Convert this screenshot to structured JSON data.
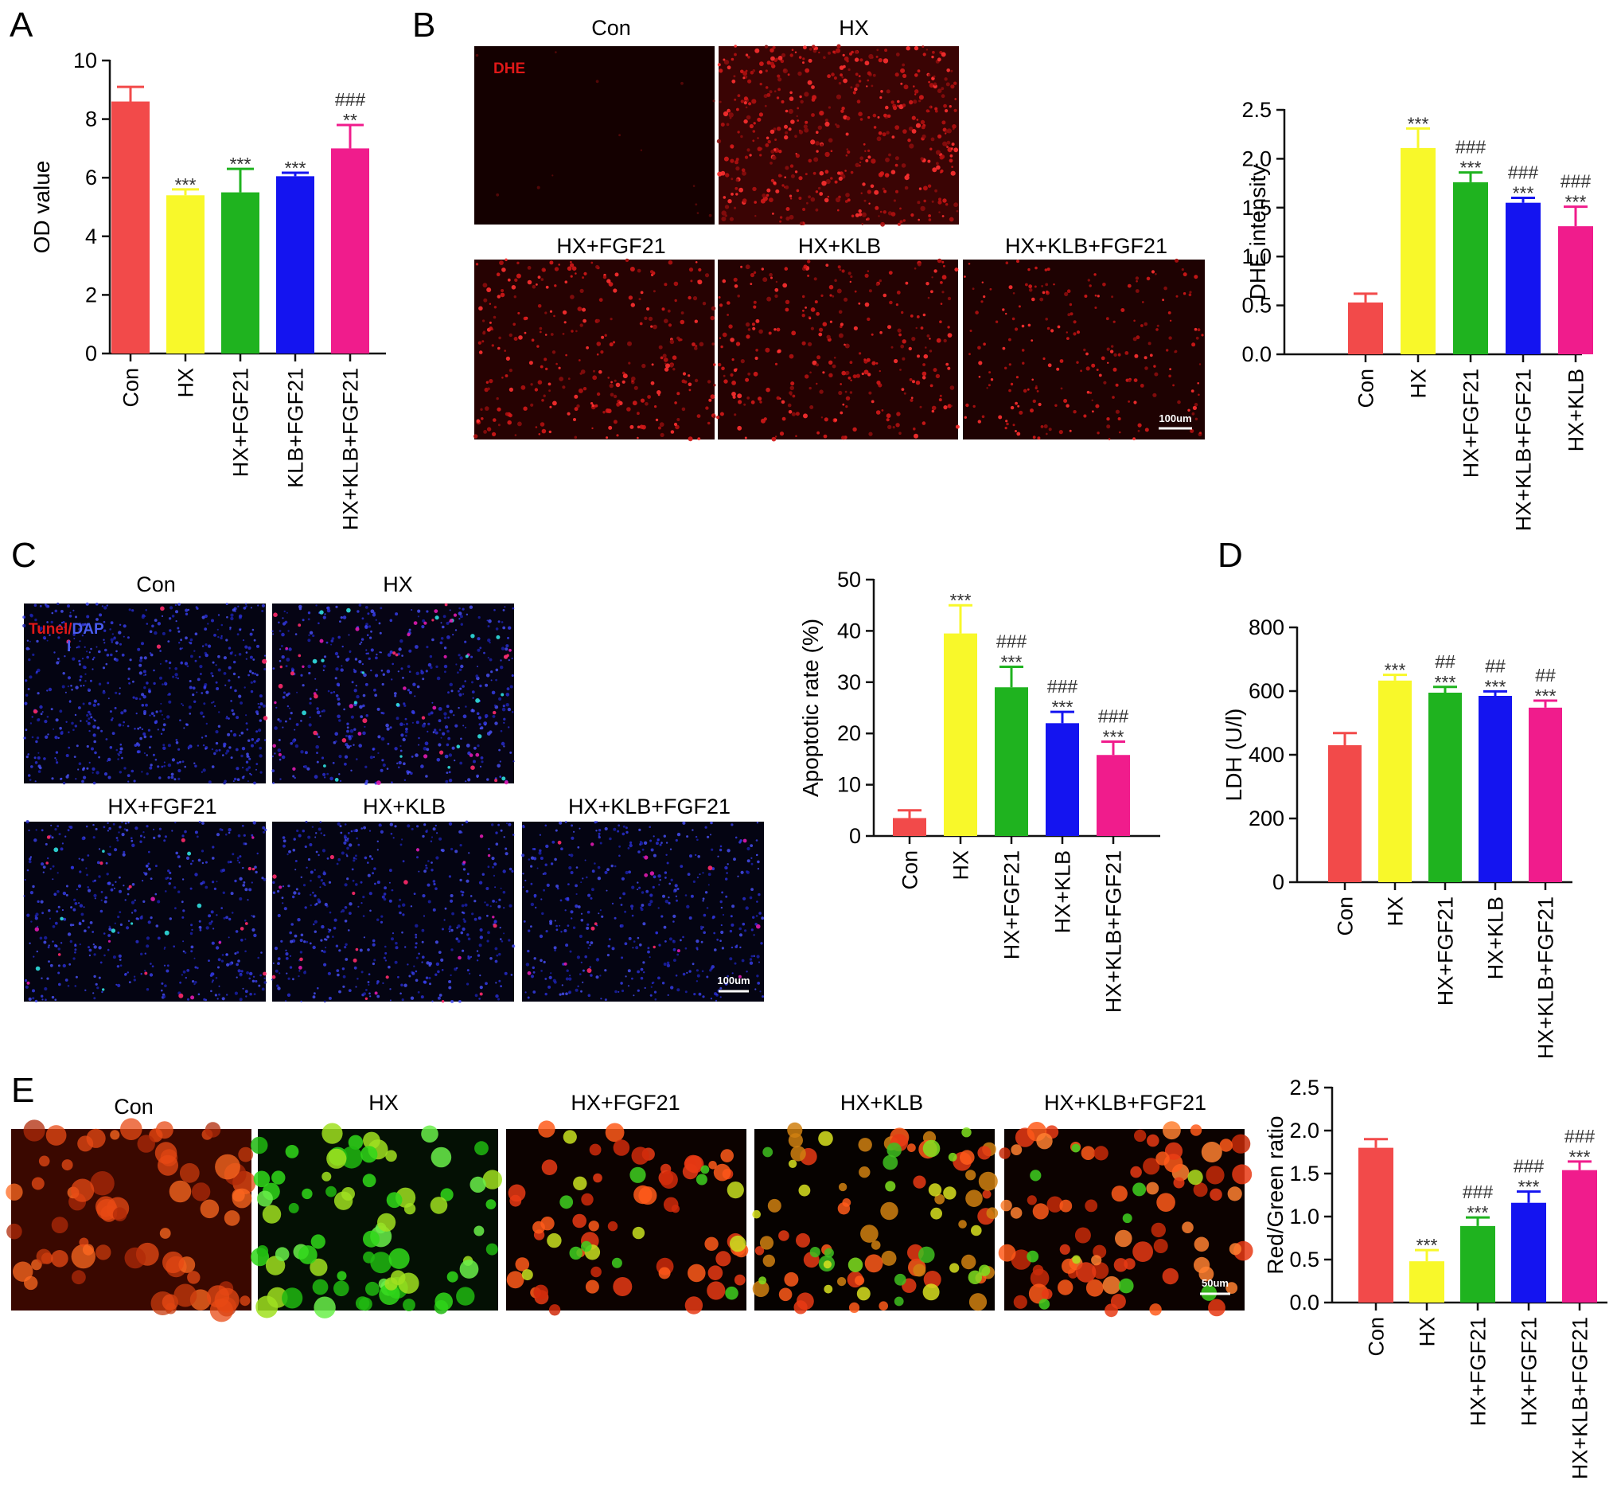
{
  "colors": {
    "con": "#f24a4a",
    "hx": "#f8f82a",
    "fgf21": "#1fb31f",
    "klb_blue": "#1414f0",
    "klb_fgf21": "#f01c8c",
    "axis": "#111111"
  },
  "panels": {
    "A": {
      "letter": "A",
      "chart_data": {
        "type": "bar",
        "categories": [
          "Con",
          "HX",
          "HX+FGF21",
          "KLB+FGF21",
          "HX+KLB+FGF21"
        ],
        "values": [
          8.6,
          5.4,
          5.5,
          6.05,
          7.0
        ],
        "errors": [
          0.5,
          0.2,
          0.8,
          0.12,
          0.8
        ],
        "ylabel": "OD value",
        "ylim": [
          0,
          10
        ],
        "yticks": [
          0,
          2,
          4,
          6,
          8,
          10
        ],
        "annotations": [
          [],
          [
            "***"
          ],
          [
            "***"
          ],
          [
            "***"
          ],
          [
            "###",
            "**"
          ]
        ],
        "grid": false
      }
    },
    "B": {
      "letter": "B",
      "images": {
        "con": "Con",
        "hx": "HX",
        "hx_fgf21": "HX+FGF21",
        "hx_klb": "HX+KLB",
        "hx_klb_fgf21": "HX+KLB+FGF21"
      },
      "stain_label": "DHE",
      "scale_bar": "100um",
      "chart_data": {
        "type": "bar",
        "categories": [
          "Con",
          "HX",
          "HX+FGF21",
          "HX+KLB+FGF21",
          "HX+KLB"
        ],
        "values": [
          0.53,
          2.11,
          1.76,
          1.55,
          1.31
        ],
        "errors": [
          0.09,
          0.2,
          0.1,
          0.05,
          0.2
        ],
        "ylabel": "DHE intensity",
        "ylim": [
          0,
          2.5
        ],
        "yticks": [
          0.0,
          0.5,
          1.0,
          1.5,
          2.0,
          2.5
        ],
        "annotations": [
          [],
          [
            "***"
          ],
          [
            "###",
            "***"
          ],
          [
            "###",
            "***"
          ],
          [
            "###",
            "***"
          ]
        ],
        "grid": false
      }
    },
    "C": {
      "letter": "C",
      "images": {
        "con": "Con",
        "hx": "HX",
        "hx_fgf21": "HX+FGF21",
        "hx_klb": "HX+KLB",
        "hx_klb_fgf21": "HX+KLB+FGF21"
      },
      "stain_label_a": "Tunel/",
      "stain_label_b": "DAP",
      "stain_label_c": "I",
      "scale_bar": "100um",
      "chart_data": {
        "type": "bar",
        "categories": [
          "Con",
          "HX",
          "HX+FGF21",
          "HX+KLB",
          "HX+KLB+FGF21"
        ],
        "values": [
          3.5,
          39.5,
          29.0,
          22.0,
          15.8
        ],
        "errors": [
          1.5,
          5.5,
          4.0,
          2.2,
          2.6
        ],
        "ylabel": "Apoptotic rate (%)",
        "ylim": [
          0,
          50
        ],
        "yticks": [
          0,
          10,
          20,
          30,
          40,
          50
        ],
        "annotations": [
          [],
          [
            "***"
          ],
          [
            "###",
            "***"
          ],
          [
            "###",
            "***"
          ],
          [
            "###",
            "***"
          ]
        ],
        "grid": false
      }
    },
    "D": {
      "letter": "D",
      "chart_data": {
        "type": "bar",
        "categories": [
          "Con",
          "HX",
          "HX+FGF21",
          "HX+KLB",
          "HX+KLB+FGF21"
        ],
        "values": [
          430,
          633,
          595,
          585,
          548
        ],
        "errors": [
          38,
          18,
          18,
          14,
          22
        ],
        "ylabel": "LDH (U/l)",
        "ylim": [
          0,
          800
        ],
        "yticks": [
          0,
          200,
          400,
          600,
          800
        ],
        "annotations": [
          [],
          [
            "***"
          ],
          [
            "##",
            "***"
          ],
          [
            "##",
            "***"
          ],
          [
            "##",
            "***"
          ]
        ],
        "grid": false
      }
    },
    "E": {
      "letter": "E",
      "images": {
        "con": "Con",
        "hx": "HX",
        "hx_fgf21": "HX+FGF21",
        "hx_klb": "HX+KLB",
        "hx_klb_fgf21": "HX+KLB+FGF21"
      },
      "scale_bar": "50um",
      "chart_data": {
        "type": "bar",
        "categories": [
          "Con",
          "HX",
          "HX+FGF21",
          "HX+FGF21",
          "HX+KLB+FGF21"
        ],
        "values": [
          1.8,
          0.48,
          0.89,
          1.16,
          1.54
        ],
        "errors": [
          0.1,
          0.13,
          0.1,
          0.13,
          0.1
        ],
        "ylabel": "Red/Green ratio",
        "ylim": [
          0,
          2.5
        ],
        "yticks": [
          0.0,
          0.5,
          1.0,
          1.5,
          2.0,
          2.5
        ],
        "annotations": [
          [],
          [
            "***"
          ],
          [
            "###",
            "***"
          ],
          [
            "###",
            "***"
          ],
          [
            "###",
            "***"
          ]
        ],
        "grid": false
      }
    }
  }
}
